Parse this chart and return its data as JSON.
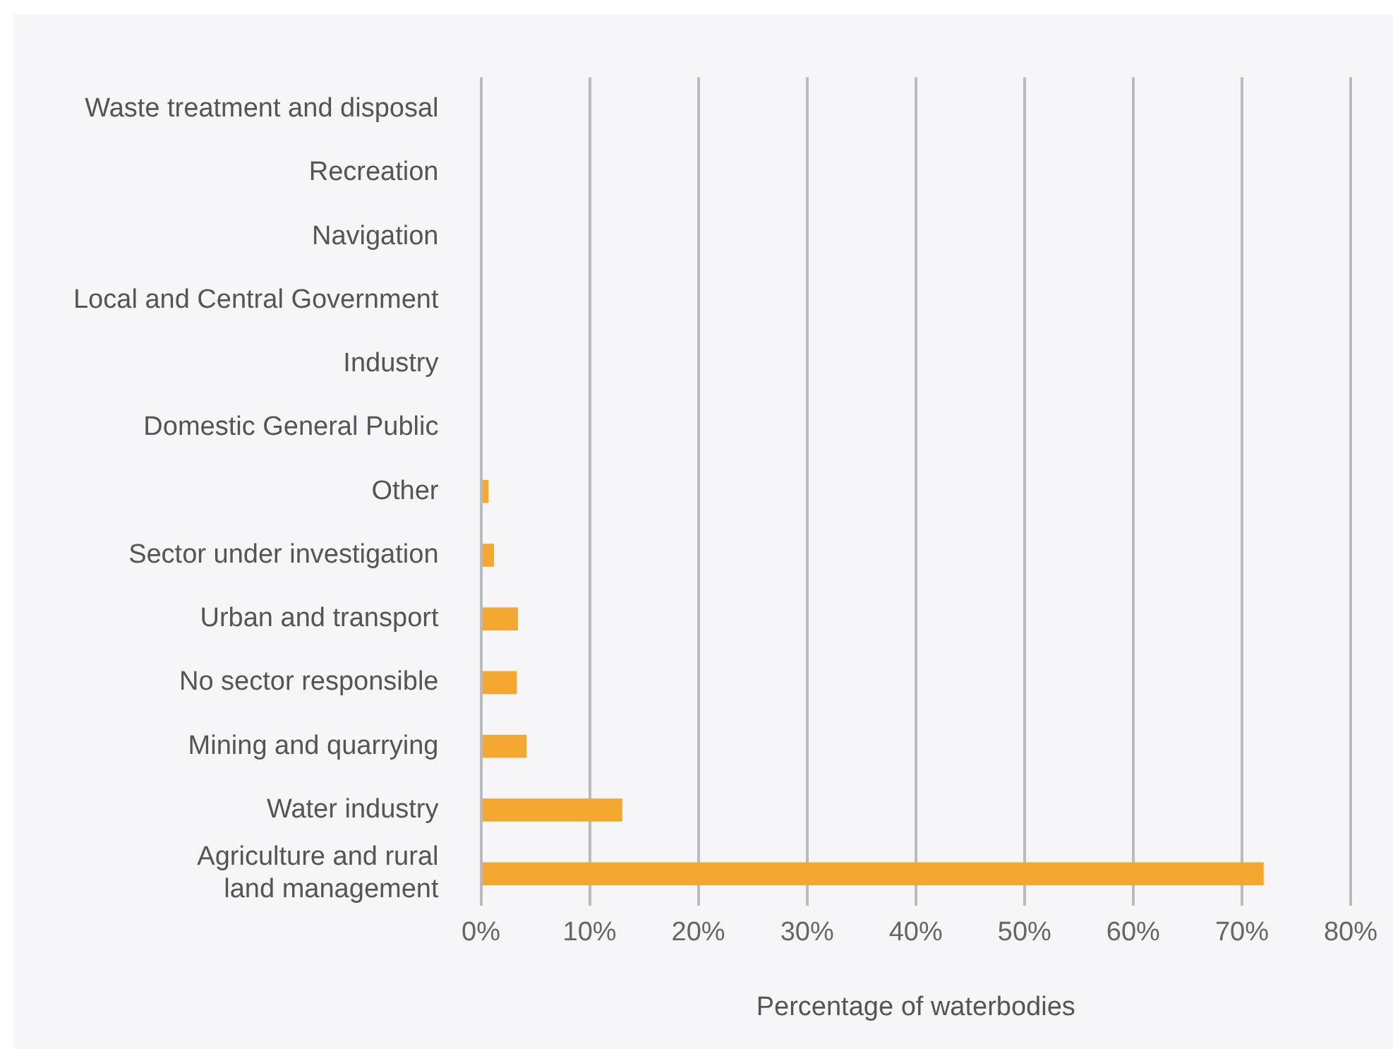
{
  "chart_data": {
    "type": "bar",
    "orientation": "horizontal",
    "xlabel": "Percentage of waterbodies",
    "categories": [
      "Waste treatment and disposal",
      "Recreation",
      "Navigation",
      "Local and Central Government",
      "Industry",
      "Domestic General Public",
      "Other",
      "Sector under investigation",
      "Urban and transport",
      "No sector responsible",
      "Mining and quarrying",
      "Water industry",
      "Agriculture and rural land management"
    ],
    "values": [
      0,
      0,
      0,
      0,
      0,
      0,
      0.7,
      1.2,
      3.4,
      3.3,
      4.2,
      13,
      72
    ],
    "color": "#f4a731",
    "xlim": [
      0,
      80
    ],
    "xticks": [
      {
        "value": 0,
        "label": "0%"
      },
      {
        "value": 10,
        "label": "10%"
      },
      {
        "value": 20,
        "label": "20%"
      },
      {
        "value": 30,
        "label": "30%"
      },
      {
        "value": 40,
        "label": "40%"
      },
      {
        "value": 50,
        "label": "50%"
      },
      {
        "value": 60,
        "label": "60%"
      },
      {
        "value": 70,
        "label": "70%"
      },
      {
        "value": 80,
        "label": "80%"
      }
    ],
    "grid": "x",
    "legend": false
  }
}
